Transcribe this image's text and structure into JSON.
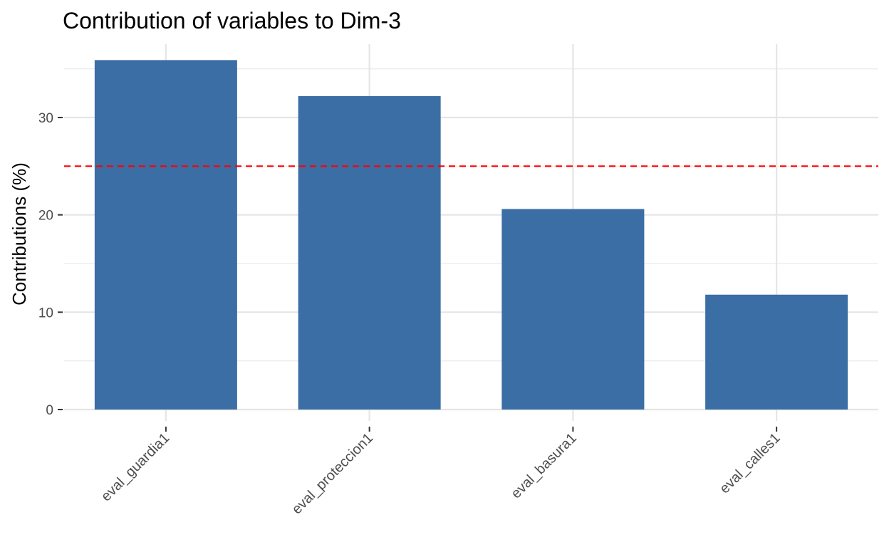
{
  "chart_data": {
    "type": "bar",
    "title": "Contribution of variables to Dim-3",
    "xlabel": "",
    "ylabel": "Contributions (%)",
    "categories": [
      "eval_guardia1",
      "eval_proteccion1",
      "eval_basura1",
      "eval_calles1"
    ],
    "values": [
      35.9,
      32.2,
      20.6,
      11.8
    ],
    "ylim": [
      0,
      37.6
    ],
    "yticks": [
      0,
      10,
      20,
      30
    ],
    "yticklabels": [
      "0",
      "10",
      "20",
      "30"
    ],
    "reference_line": {
      "value": 25,
      "style": "dashed",
      "color": "#ff0000"
    },
    "bar_color": "#3a6ea5",
    "grid": true,
    "legend": "none"
  }
}
